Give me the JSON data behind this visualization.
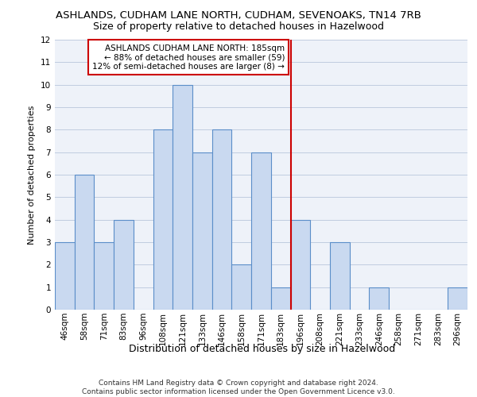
{
  "title": "ASHLANDS, CUDHAM LANE NORTH, CUDHAM, SEVENOAKS, TN14 7RB",
  "subtitle": "Size of property relative to detached houses in Hazelwood",
  "xlabel": "Distribution of detached houses by size in Hazelwood",
  "ylabel": "Number of detached properties",
  "categories": [
    "46sqm",
    "58sqm",
    "71sqm",
    "83sqm",
    "96sqm",
    "108sqm",
    "121sqm",
    "133sqm",
    "146sqm",
    "158sqm",
    "171sqm",
    "183sqm",
    "196sqm",
    "208sqm",
    "221sqm",
    "233sqm",
    "246sqm",
    "258sqm",
    "271sqm",
    "283sqm",
    "296sqm"
  ],
  "values": [
    3,
    6,
    3,
    4,
    0,
    8,
    10,
    7,
    8,
    2,
    7,
    1,
    4,
    0,
    3,
    0,
    1,
    0,
    0,
    0,
    1
  ],
  "bar_color": "#c9d9f0",
  "bar_edge_color": "#5b8ec9",
  "red_line_index": 11,
  "annotation_text": "ASHLANDS CUDHAM LANE NORTH: 185sqm\n← 88% of detached houses are smaller (59)\n12% of semi-detached houses are larger (8) →",
  "annotation_box_color": "#ffffff",
  "annotation_box_edge_color": "#cc0000",
  "red_line_color": "#cc0000",
  "ylim": [
    0,
    12
  ],
  "yticks": [
    0,
    1,
    2,
    3,
    4,
    5,
    6,
    7,
    8,
    9,
    10,
    11,
    12
  ],
  "grid_color": "#c0cce0",
  "background_color": "#eef2f9",
  "footer_text": "Contains HM Land Registry data © Crown copyright and database right 2024.\nContains public sector information licensed under the Open Government Licence v3.0.",
  "title_fontsize": 9.5,
  "subtitle_fontsize": 9,
  "xlabel_fontsize": 9,
  "ylabel_fontsize": 8,
  "tick_fontsize": 7.5,
  "annotation_fontsize": 7.5,
  "footer_fontsize": 6.5
}
